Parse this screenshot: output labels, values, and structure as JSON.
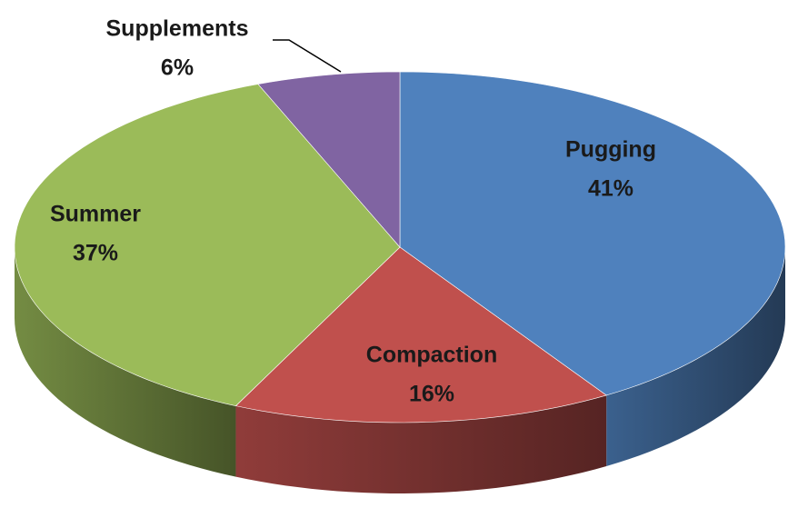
{
  "chart_data": {
    "type": "pie",
    "categories": [
      "Pugging",
      "Compaction",
      "Summer",
      "Supplements"
    ],
    "values": [
      41,
      16,
      37,
      6
    ],
    "value_labels": [
      "41%",
      "16%",
      "37%",
      "6%"
    ],
    "colors": [
      "#4f81bd",
      "#c0504d",
      "#9bbb59",
      "#8064a2"
    ]
  }
}
